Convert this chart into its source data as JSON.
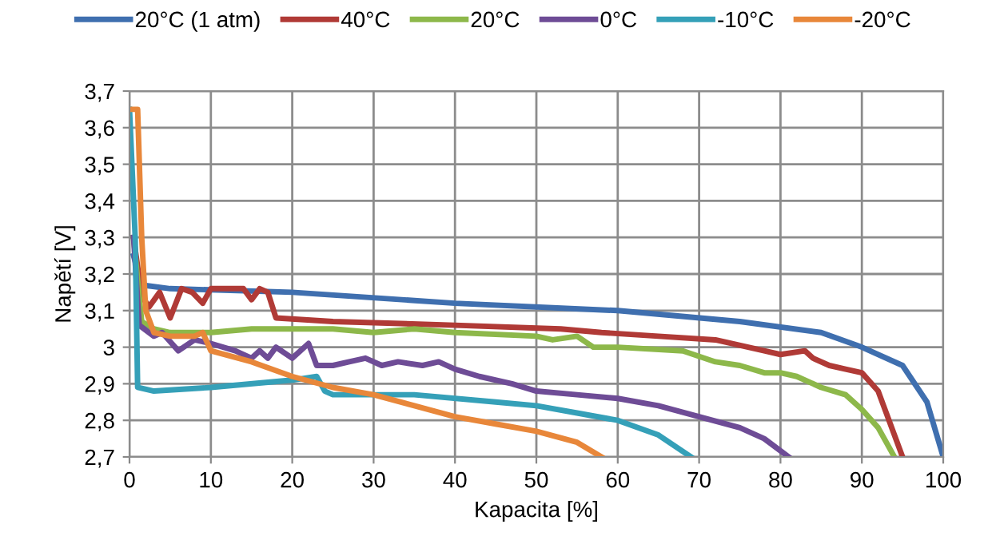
{
  "chart_data": {
    "type": "line",
    "xlabel": "Kapacita [%]",
    "ylabel": "Napětí [V]",
    "xlim": [
      0,
      100
    ],
    "xticks": [
      0,
      10,
      20,
      30,
      40,
      50,
      60,
      70,
      80,
      90,
      100
    ],
    "ylim": [
      2.7,
      3.7
    ],
    "yticks": [
      {
        "value": 2.7,
        "label": "2,7"
      },
      {
        "value": 2.8,
        "label": "2,8"
      },
      {
        "value": 2.9,
        "label": "2,9"
      },
      {
        "value": 3.0,
        "label": "3"
      },
      {
        "value": 3.1,
        "label": "3,1"
      },
      {
        "value": 3.2,
        "label": "3,2"
      },
      {
        "value": 3.3,
        "label": "3,3"
      },
      {
        "value": 3.4,
        "label": "3,4"
      },
      {
        "value": 3.5,
        "label": "3,5"
      },
      {
        "value": 3.6,
        "label": "3,6"
      },
      {
        "value": 3.7,
        "label": "3,7"
      }
    ],
    "grid": true,
    "legend": "top",
    "marker": "none",
    "line_style": "solid",
    "series": [
      {
        "name": "20°C (1 atm)",
        "color": "#3f6faf",
        "x": [
          0.5,
          1.5,
          5,
          20,
          40,
          60,
          75,
          85,
          90,
          95,
          98,
          100
        ],
        "values": [
          3.25,
          3.17,
          3.16,
          3.15,
          3.12,
          3.1,
          3.07,
          3.04,
          3.0,
          2.95,
          2.85,
          2.7
        ]
      },
      {
        "name": "40°C",
        "color": "#b03a36",
        "x": [
          0.5,
          1.5,
          2.4,
          3.7,
          5,
          6.4,
          7.7,
          9,
          10,
          12,
          14,
          15,
          16,
          17,
          18,
          25,
          40,
          53,
          58,
          65,
          72,
          78,
          80,
          83,
          84,
          86,
          88,
          90,
          92,
          93,
          94,
          95
        ],
        "values": [
          3.3,
          3.14,
          3.11,
          3.15,
          3.08,
          3.16,
          3.15,
          3.12,
          3.16,
          3.16,
          3.16,
          3.13,
          3.16,
          3.15,
          3.08,
          3.07,
          3.06,
          3.05,
          3.04,
          3.03,
          3.02,
          2.99,
          2.98,
          2.99,
          2.97,
          2.95,
          2.94,
          2.93,
          2.88,
          2.82,
          2.76,
          2.7
        ]
      },
      {
        "name": "20°C",
        "color": "#8db84a",
        "x": [
          0.5,
          1.5,
          3,
          5,
          10,
          15,
          20,
          25,
          30,
          35,
          40,
          50,
          52,
          55,
          57,
          60,
          68,
          72,
          75,
          78,
          80,
          82,
          85,
          88,
          90,
          92,
          93,
          94
        ],
        "values": [
          3.3,
          3.07,
          3.05,
          3.04,
          3.04,
          3.05,
          3.05,
          3.05,
          3.04,
          3.05,
          3.04,
          3.03,
          3.02,
          3.03,
          3.0,
          3.0,
          2.99,
          2.96,
          2.95,
          2.93,
          2.93,
          2.92,
          2.89,
          2.87,
          2.83,
          2.78,
          2.74,
          2.7
        ]
      },
      {
        "name": "0°C",
        "color": "#6e4c96",
        "x": [
          0.5,
          1.2,
          3,
          4,
          6,
          8,
          10,
          13,
          15,
          16,
          17,
          18,
          20,
          22,
          23,
          25,
          27,
          29,
          31,
          33,
          36,
          38,
          40,
          43,
          47,
          50,
          55,
          60,
          65,
          70,
          75,
          78,
          81
        ],
        "values": [
          3.3,
          3.06,
          3.03,
          3.04,
          2.99,
          3.02,
          3.01,
          2.99,
          2.97,
          2.99,
          2.97,
          3.0,
          2.97,
          3.01,
          2.95,
          2.95,
          2.96,
          2.97,
          2.95,
          2.96,
          2.95,
          2.96,
          2.94,
          2.92,
          2.9,
          2.88,
          2.87,
          2.86,
          2.84,
          2.81,
          2.78,
          2.75,
          2.7
        ]
      },
      {
        "name": "-10°C",
        "color": "#35a0b8",
        "x": [
          0,
          0.7,
          1,
          3,
          10,
          20,
          23,
          24,
          25,
          35,
          45,
          50,
          55,
          60,
          65,
          69
        ],
        "values": [
          3.65,
          3.3,
          2.89,
          2.88,
          2.89,
          2.91,
          2.92,
          2.88,
          2.87,
          2.87,
          2.85,
          2.84,
          2.82,
          2.8,
          2.76,
          2.7
        ]
      },
      {
        "name": "-20°C",
        "color": "#e8873a",
        "x": [
          0,
          1,
          1.5,
          2,
          3,
          5,
          8,
          9,
          10,
          15,
          20,
          25,
          30,
          35,
          40,
          45,
          50,
          55,
          58
        ],
        "values": [
          3.65,
          3.65,
          3.3,
          3.1,
          3.04,
          3.03,
          3.03,
          3.04,
          2.99,
          2.96,
          2.92,
          2.89,
          2.87,
          2.84,
          2.81,
          2.79,
          2.77,
          2.74,
          2.7
        ]
      }
    ]
  }
}
